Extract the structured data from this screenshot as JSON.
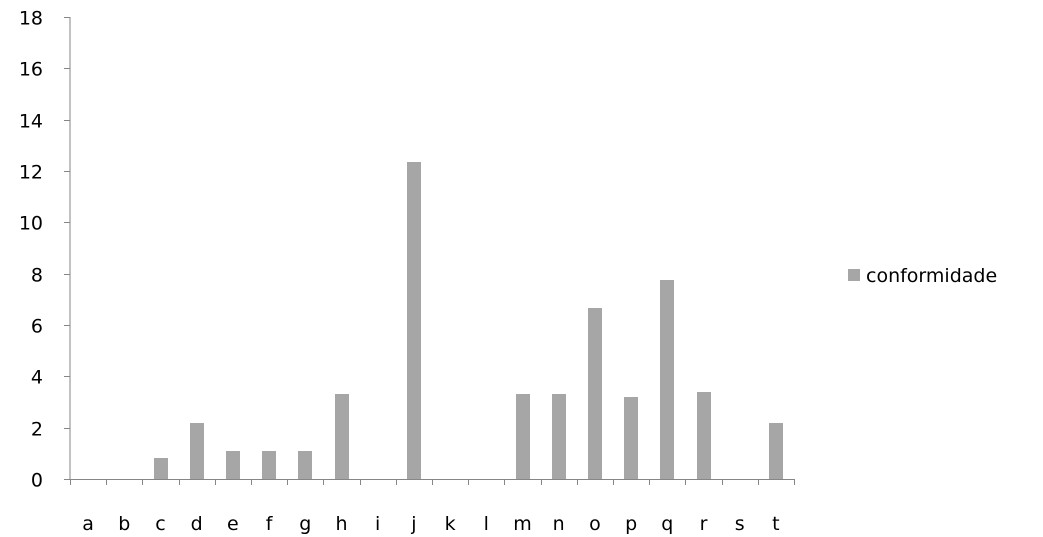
{
  "chart_data": {
    "type": "bar",
    "categories": [
      "a",
      "b",
      "c",
      "d",
      "e",
      "f",
      "g",
      "h",
      "i",
      "j",
      "k",
      "l",
      "m",
      "n",
      "o",
      "p",
      "q",
      "r",
      "s",
      "t"
    ],
    "series": [
      {
        "name": "conformidade",
        "values": [
          0,
          0,
          0.8,
          2.2,
          1.1,
          1.1,
          1.1,
          3.3,
          0,
          12.35,
          0,
          0,
          3.3,
          3.3,
          6.65,
          3.2,
          7.75,
          3.4,
          0,
          2.2
        ],
        "color": "#a6a6a6"
      }
    ],
    "ylim": [
      0,
      18
    ],
    "yticks": [
      0,
      2,
      4,
      6,
      8,
      10,
      12,
      14,
      16,
      18
    ],
    "grid": false,
    "legend_position": "right"
  }
}
